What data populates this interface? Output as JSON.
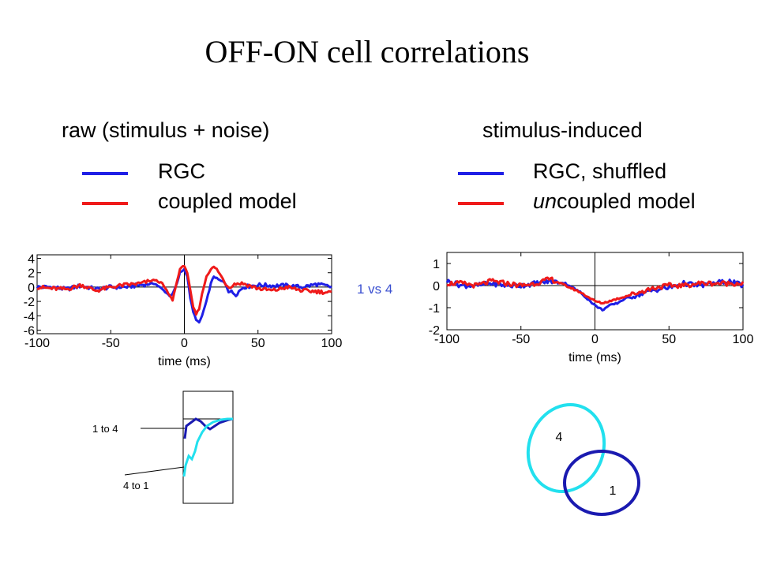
{
  "title": "OFF-ON cell correlations",
  "left": {
    "heading": "raw (stimulus + noise)",
    "legend": [
      {
        "label": "RGC",
        "color": "#1f1fe6"
      },
      {
        "label": "coupled model",
        "color": "#ef1a1a"
      }
    ]
  },
  "right": {
    "heading": "stimulus-induced",
    "legend": [
      {
        "label": "RGC, shuffled",
        "color": "#1f1fe6"
      },
      {
        "label_emph": "un",
        "label_rest": "coupled model",
        "color": "#ef1a1a"
      }
    ]
  },
  "pair_label": "1 vs 4",
  "inset": {
    "label_top": "1 to 4",
    "label_bottom": "4 to 1",
    "colors": [
      "#1a1ab0",
      "#22e0ee"
    ]
  },
  "cells": {
    "label_a": "4",
    "label_b": "1",
    "color_a": "#22e0ee",
    "color_b": "#1a1ab0"
  },
  "chart_data": [
    {
      "type": "line",
      "xlabel": "time (ms)",
      "ylabel": "",
      "xlim": [
        -100,
        100
      ],
      "ylim": [
        -6.5,
        4.5
      ],
      "xticks": [
        -100,
        -50,
        0,
        50,
        100
      ],
      "yticks": [
        4,
        2,
        0,
        -2,
        -4,
        -6
      ],
      "x": [
        -100,
        -90,
        -80,
        -70,
        -60,
        -50,
        -40,
        -30,
        -20,
        -15,
        -10,
        -8,
        -5,
        -3,
        0,
        2,
        4,
        6,
        8,
        10,
        12,
        15,
        18,
        20,
        22,
        25,
        28,
        30,
        35,
        40,
        50,
        60,
        70,
        80,
        90,
        100
      ],
      "series": [
        {
          "name": "RGC",
          "color": "#1f1fe6",
          "values": [
            0,
            0,
            -0.3,
            0.2,
            -0.3,
            0,
            0,
            0.3,
            0.5,
            -0.3,
            -1.2,
            -1.0,
            0.5,
            2.0,
            2.5,
            1.5,
            -1.5,
            -3.5,
            -4.5,
            -5.0,
            -4.0,
            -2.0,
            0.5,
            1.5,
            1.2,
            0.8,
            0.5,
            -0.5,
            -1.0,
            0,
            0.3,
            0.2,
            0.2,
            0,
            0.4,
            0
          ]
        },
        {
          "name": "coupled model",
          "color": "#ef1a1a",
          "values": [
            0,
            -0.2,
            -0.3,
            0.3,
            -0.5,
            0,
            0.3,
            0.5,
            1.0,
            0.5,
            -1.2,
            -1.8,
            0.8,
            2.5,
            3.0,
            2.0,
            -0.5,
            -2.8,
            -3.8,
            -3.0,
            -1.0,
            1.5,
            2.5,
            2.8,
            2.5,
            1.5,
            0.5,
            0.0,
            0.5,
            0.5,
            -0.2,
            -0.5,
            0.0,
            -0.5,
            -0.6,
            -0.8
          ]
        }
      ]
    },
    {
      "type": "line",
      "xlabel": "time (ms)",
      "ylabel": "",
      "xlim": [
        -100,
        100
      ],
      "ylim": [
        -2,
        1.5
      ],
      "xticks": [
        -100,
        -50,
        0,
        50,
        100
      ],
      "yticks": [
        1,
        0,
        -1,
        -2
      ],
      "x": [
        -100,
        -90,
        -80,
        -70,
        -60,
        -50,
        -40,
        -30,
        -20,
        -10,
        -5,
        0,
        5,
        10,
        15,
        20,
        30,
        40,
        50,
        60,
        70,
        80,
        90,
        100
      ],
      "series": [
        {
          "name": "RGC, shuffled",
          "color": "#1f1fe6",
          "values": [
            0.2,
            0,
            0,
            0.1,
            0,
            0,
            0.1,
            0.2,
            0.1,
            -0.3,
            -0.6,
            -0.9,
            -1.1,
            -0.9,
            -0.8,
            -0.6,
            -0.4,
            -0.2,
            -0.1,
            0.1,
            0.0,
            0.1,
            0.2,
            0
          ]
        },
        {
          "name": "uncoupled model",
          "color": "#ef1a1a",
          "values": [
            0.1,
            0.1,
            0,
            0.2,
            0.1,
            0,
            0.1,
            0.3,
            0,
            -0.3,
            -0.5,
            -0.7,
            -0.8,
            -0.7,
            -0.6,
            -0.5,
            -0.3,
            -0.1,
            0.0,
            0.0,
            0.1,
            0.1,
            0.1,
            0.1
          ]
        }
      ]
    }
  ]
}
